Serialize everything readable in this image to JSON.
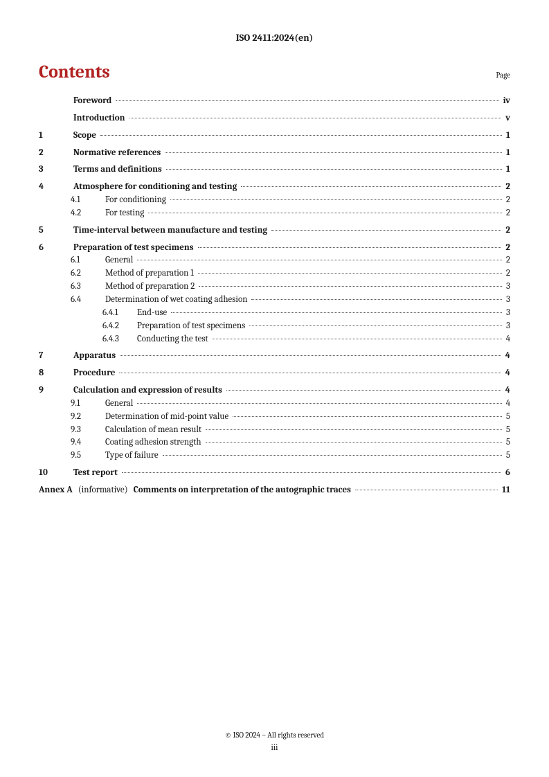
{
  "header": "ISO 2411:2024(en)",
  "contentsTitle": "Contents",
  "pageLabel": "Page",
  "footer": {
    "copyright": "© ISO 2024 – All rights reserved",
    "pageNumber": "iii"
  },
  "toc": [
    {
      "type": "main",
      "num": "",
      "text": "Foreword",
      "page": "iv",
      "bold": true,
      "indent": 0
    },
    {
      "type": "gap"
    },
    {
      "type": "main",
      "num": "",
      "text": "Introduction",
      "page": "v",
      "bold": true,
      "indent": 0
    },
    {
      "type": "gap"
    },
    {
      "type": "main",
      "num": "1",
      "text": "Scope",
      "page": "1",
      "bold": true,
      "indent": 0
    },
    {
      "type": "gap"
    },
    {
      "type": "main",
      "num": "2",
      "text": "Normative references",
      "page": "1",
      "bold": true,
      "indent": 0
    },
    {
      "type": "gap"
    },
    {
      "type": "main",
      "num": "3",
      "text": "Terms and definitions",
      "page": "1",
      "bold": true,
      "indent": 0
    },
    {
      "type": "gap"
    },
    {
      "type": "main",
      "num": "4",
      "text": "Atmosphere for conditioning and testing",
      "page": "2",
      "bold": true,
      "indent": 0
    },
    {
      "type": "sub",
      "num": "4.1",
      "text": "For conditioning",
      "page": "2",
      "bold": false,
      "indent": 1
    },
    {
      "type": "sub",
      "num": "4.2",
      "text": "For testing",
      "page": "2",
      "bold": false,
      "indent": 1
    },
    {
      "type": "gap"
    },
    {
      "type": "main",
      "num": "5",
      "text": "Time-interval between manufacture and testing",
      "page": "2",
      "bold": true,
      "indent": 0
    },
    {
      "type": "gap"
    },
    {
      "type": "main",
      "num": "6",
      "text": "Preparation of test specimens",
      "page": "2",
      "bold": true,
      "indent": 0
    },
    {
      "type": "sub",
      "num": "6.1",
      "text": "General",
      "page": "2",
      "bold": false,
      "indent": 1
    },
    {
      "type": "sub",
      "num": "6.2",
      "text": "Method of preparation 1",
      "page": "2",
      "bold": false,
      "indent": 1
    },
    {
      "type": "sub",
      "num": "6.3",
      "text": "Method of preparation 2",
      "page": "3",
      "bold": false,
      "indent": 1
    },
    {
      "type": "sub",
      "num": "6.4",
      "text": "Determination of wet coating adhesion",
      "page": "3",
      "bold": false,
      "indent": 1
    },
    {
      "type": "sub",
      "num": "6.4.1",
      "text": "End-use",
      "page": "3",
      "bold": false,
      "indent": 2
    },
    {
      "type": "sub",
      "num": "6.4.2",
      "text": "Preparation of test specimens",
      "page": "3",
      "bold": false,
      "indent": 2
    },
    {
      "type": "sub",
      "num": "6.4.3",
      "text": "Conducting the test",
      "page": "4",
      "bold": false,
      "indent": 2
    },
    {
      "type": "gap"
    },
    {
      "type": "main",
      "num": "7",
      "text": "Apparatus",
      "page": "4",
      "bold": true,
      "indent": 0
    },
    {
      "type": "gap"
    },
    {
      "type": "main",
      "num": "8",
      "text": "Procedure",
      "page": "4",
      "bold": true,
      "indent": 0
    },
    {
      "type": "gap"
    },
    {
      "type": "main",
      "num": "9",
      "text": "Calculation and expression of results",
      "page": "4",
      "bold": true,
      "indent": 0
    },
    {
      "type": "sub",
      "num": "9.1",
      "text": "General",
      "page": "4",
      "bold": false,
      "indent": 1
    },
    {
      "type": "sub",
      "num": "9.2",
      "text": "Determination of mid-point value",
      "page": "5",
      "bold": false,
      "indent": 1
    },
    {
      "type": "sub",
      "num": "9.3",
      "text": "Calculation of mean result",
      "page": "5",
      "bold": false,
      "indent": 1
    },
    {
      "type": "sub",
      "num": "9.4",
      "text": "Coating adhesion strength",
      "page": "5",
      "bold": false,
      "indent": 1
    },
    {
      "type": "sub",
      "num": "9.5",
      "text": "Type of failure",
      "page": "5",
      "bold": false,
      "indent": 1
    },
    {
      "type": "gap"
    },
    {
      "type": "main",
      "num": "10",
      "text": "Test report",
      "page": "6",
      "bold": true,
      "indent": 0
    },
    {
      "type": "gap"
    },
    {
      "type": "annex",
      "prefix": "Annex A",
      "note": "(informative)",
      "text": "Comments on interpretation of the autographic traces",
      "page": "11",
      "indent": 0
    }
  ]
}
